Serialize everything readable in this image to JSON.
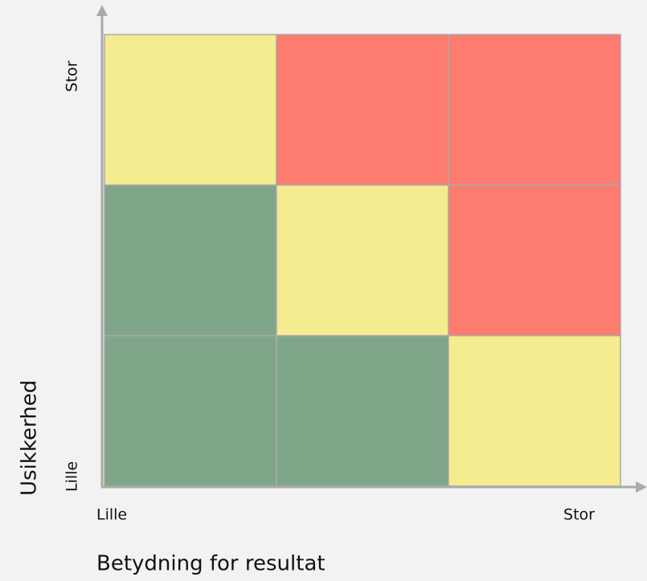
{
  "matrix": {
    "y_axis": {
      "title": "Usikkerhed",
      "low": "Lille",
      "high": "Stor"
    },
    "x_axis": {
      "title": "Betydning for resultat",
      "low": "Lille",
      "high": "Stor"
    },
    "cells": [
      [
        "#f5eb8f",
        "#fd7b6f",
        "#fd7b6f"
      ],
      [
        "#80a68a",
        "#f5eb8f",
        "#fd7b6f"
      ],
      [
        "#80a68a",
        "#80a68a",
        "#f5eb8f"
      ]
    ]
  }
}
